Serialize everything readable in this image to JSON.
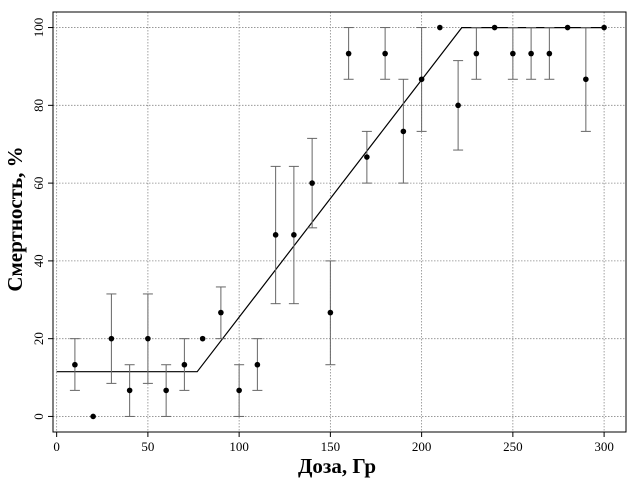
{
  "chart_data": {
    "type": "scatter",
    "xlabel": "Доза, Гр",
    "ylabel": "Смертность, %",
    "xlim": [
      -2,
      312
    ],
    "ylim": [
      -4,
      104
    ],
    "xticks": [
      0,
      50,
      100,
      150,
      200,
      250,
      300
    ],
    "yticks": [
      0,
      20,
      40,
      60,
      80,
      100
    ],
    "grid": true,
    "legend": "none",
    "series": [
      {
        "kind": "points-with-error-bars",
        "points": [
          {
            "x": 10,
            "y": 13.3,
            "lo": 6.7,
            "hi": 20
          },
          {
            "x": 20,
            "y": 0,
            "lo": 0,
            "hi": 0
          },
          {
            "x": 30,
            "y": 20,
            "lo": 8.5,
            "hi": 31.5
          },
          {
            "x": 40,
            "y": 6.7,
            "lo": 0,
            "hi": 13.3
          },
          {
            "x": 50,
            "y": 20,
            "lo": 8.5,
            "hi": 31.5
          },
          {
            "x": 60,
            "y": 6.7,
            "lo": 0,
            "hi": 13.3
          },
          {
            "x": 70,
            "y": 13.3,
            "lo": 6.7,
            "hi": 20
          },
          {
            "x": 80,
            "y": 20,
            "lo": 20,
            "hi": 20
          },
          {
            "x": 90,
            "y": 26.7,
            "lo": 20,
            "hi": 33.3
          },
          {
            "x": 100,
            "y": 6.7,
            "lo": 0,
            "hi": 13.3
          },
          {
            "x": 110,
            "y": 13.3,
            "lo": 6.7,
            "hi": 20
          },
          {
            "x": 120,
            "y": 46.7,
            "lo": 29,
            "hi": 64.3
          },
          {
            "x": 130,
            "y": 46.7,
            "lo": 29,
            "hi": 64.3
          },
          {
            "x": 140,
            "y": 60,
            "lo": 48.5,
            "hi": 71.5
          },
          {
            "x": 150,
            "y": 26.7,
            "lo": 13.3,
            "hi": 40
          },
          {
            "x": 160,
            "y": 93.3,
            "lo": 86.7,
            "hi": 100
          },
          {
            "x": 170,
            "y": 66.7,
            "lo": 60,
            "hi": 73.3
          },
          {
            "x": 180,
            "y": 93.3,
            "lo": 86.7,
            "hi": 100
          },
          {
            "x": 190,
            "y": 73.3,
            "lo": 60,
            "hi": 86.7
          },
          {
            "x": 200,
            "y": 86.7,
            "lo": 73.3,
            "hi": 100
          },
          {
            "x": 210,
            "y": 100,
            "lo": 100,
            "hi": 100
          },
          {
            "x": 220,
            "y": 80,
            "lo": 68.5,
            "hi": 91.5
          },
          {
            "x": 230,
            "y": 93.3,
            "lo": 86.7,
            "hi": 100
          },
          {
            "x": 240,
            "y": 100,
            "lo": 100,
            "hi": 100
          },
          {
            "x": 250,
            "y": 93.3,
            "lo": 86.7,
            "hi": 100
          },
          {
            "x": 260,
            "y": 93.3,
            "lo": 86.7,
            "hi": 100
          },
          {
            "x": 270,
            "y": 93.3,
            "lo": 86.7,
            "hi": 100
          },
          {
            "x": 280,
            "y": 100,
            "lo": 100,
            "hi": 100
          },
          {
            "x": 290,
            "y": 86.7,
            "lo": 73.3,
            "hi": 100
          },
          {
            "x": 300,
            "y": 100,
            "lo": 100,
            "hi": 100
          }
        ]
      },
      {
        "kind": "fit-line",
        "points": [
          {
            "x": 0,
            "y": 11.5
          },
          {
            "x": 77,
            "y": 11.5
          },
          {
            "x": 222,
            "y": 100
          },
          {
            "x": 300,
            "y": 100
          }
        ]
      }
    ]
  }
}
